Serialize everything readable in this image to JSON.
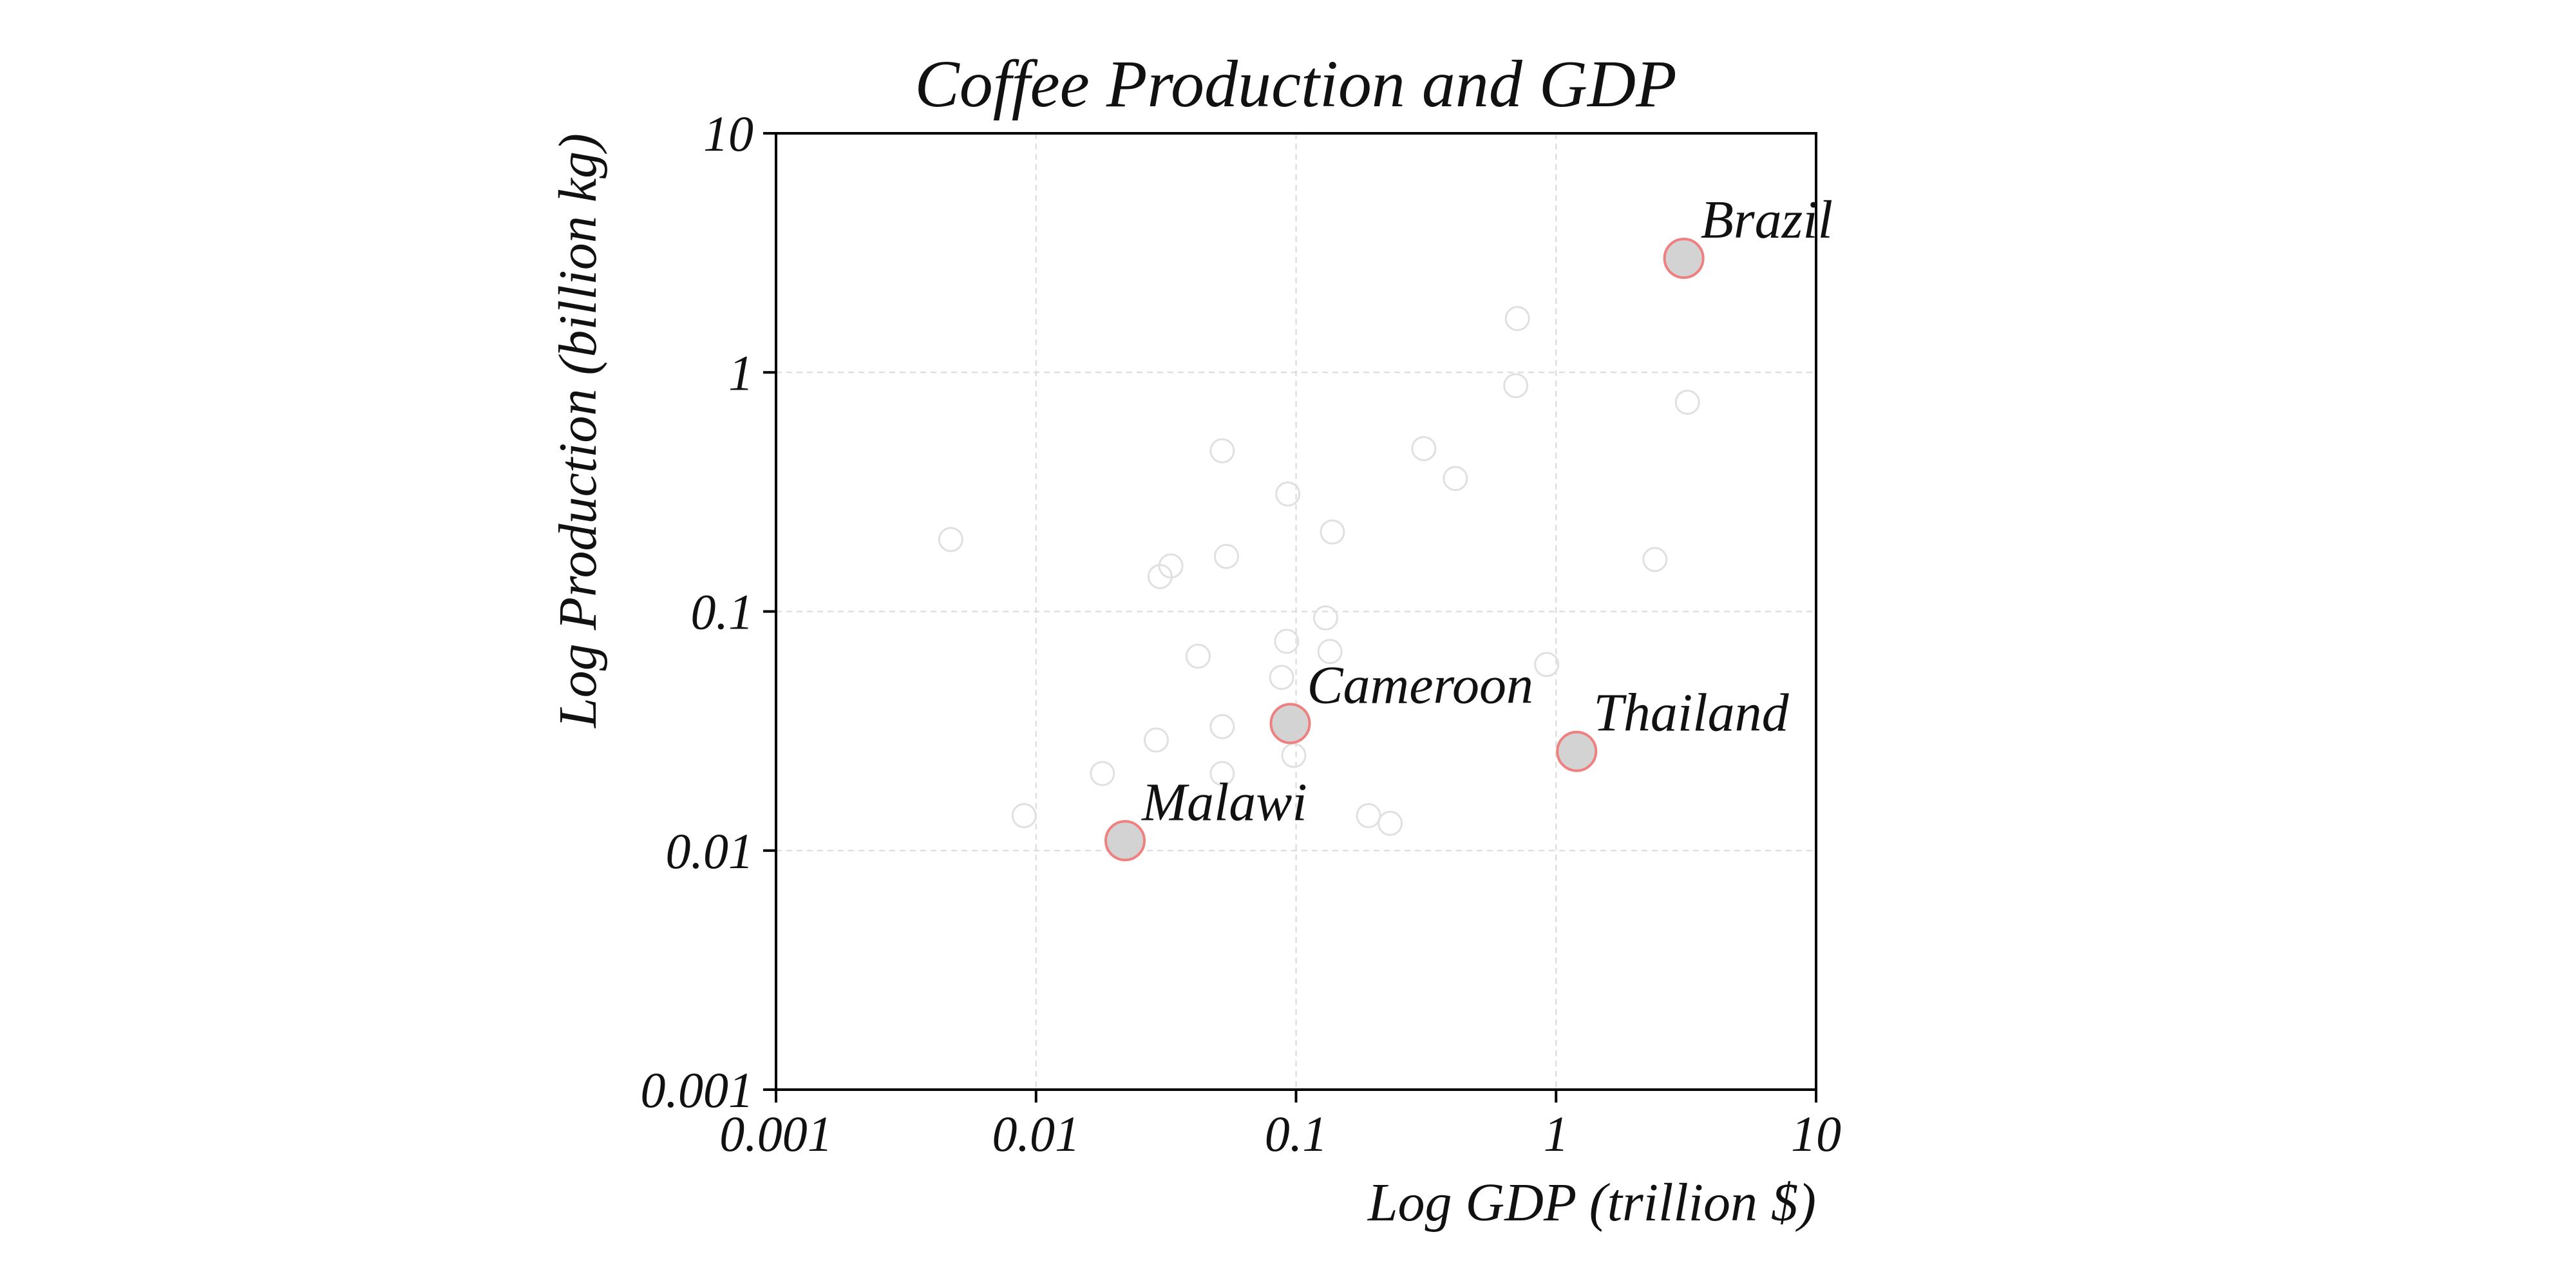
{
  "chart_data": {
    "type": "scatter",
    "title": "Coffee Production and GDP",
    "xlabel": "Log GDP (trillion $)",
    "ylabel": "Log Production (billion kg)",
    "xscale": "log",
    "yscale": "log",
    "xlim": [
      0.001,
      10
    ],
    "ylim": [
      0.001,
      10
    ],
    "grid": true,
    "x_ticks": [
      0.001,
      0.01,
      0.1,
      1,
      10
    ],
    "x_tick_labels": [
      "0.001",
      "0.01",
      "0.1",
      "1",
      "10"
    ],
    "y_ticks": [
      0.001,
      0.01,
      0.1,
      1,
      10
    ],
    "y_tick_labels": [
      "0.001",
      "0.01",
      "0.1",
      "1",
      "10"
    ],
    "colors": {
      "highlight_fill": "#d3d3d3",
      "highlight_edge": "#f08080",
      "background_edge": "#e0e0e0",
      "grid": "#d9d9d9",
      "axis": "#000000"
    },
    "highlighted": [
      {
        "name": "Brazil",
        "gdp": 3.1,
        "production": 3.0
      },
      {
        "name": "Cameroon",
        "gdp": 0.095,
        "production": 0.034
      },
      {
        "name": "Thailand",
        "gdp": 1.2,
        "production": 0.026
      },
      {
        "name": "Malawi",
        "gdp": 0.022,
        "production": 0.011
      }
    ],
    "background_points": [
      {
        "gdp": 0.0047,
        "production": 0.2
      },
      {
        "gdp": 0.009,
        "production": 0.014
      },
      {
        "gdp": 0.018,
        "production": 0.021
      },
      {
        "gdp": 0.029,
        "production": 0.029
      },
      {
        "gdp": 0.03,
        "production": 0.14
      },
      {
        "gdp": 0.033,
        "production": 0.155
      },
      {
        "gdp": 0.042,
        "production": 0.065
      },
      {
        "gdp": 0.052,
        "production": 0.47
      },
      {
        "gdp": 0.054,
        "production": 0.17
      },
      {
        "gdp": 0.052,
        "production": 0.033
      },
      {
        "gdp": 0.052,
        "production": 0.021
      },
      {
        "gdp": 0.088,
        "production": 0.053
      },
      {
        "gdp": 0.092,
        "production": 0.075
      },
      {
        "gdp": 0.093,
        "production": 0.31
      },
      {
        "gdp": 0.098,
        "production": 0.025
      },
      {
        "gdp": 0.13,
        "production": 0.094
      },
      {
        "gdp": 0.135,
        "production": 0.068
      },
      {
        "gdp": 0.138,
        "production": 0.215
      },
      {
        "gdp": 0.19,
        "production": 0.014
      },
      {
        "gdp": 0.23,
        "production": 0.013
      },
      {
        "gdp": 0.31,
        "production": 0.48
      },
      {
        "gdp": 0.41,
        "production": 0.36
      },
      {
        "gdp": 0.71,
        "production": 1.68
      },
      {
        "gdp": 0.7,
        "production": 0.88
      },
      {
        "gdp": 0.92,
        "production": 0.06
      },
      {
        "gdp": 2.4,
        "production": 0.165
      },
      {
        "gdp": 3.2,
        "production": 0.75
      }
    ]
  }
}
